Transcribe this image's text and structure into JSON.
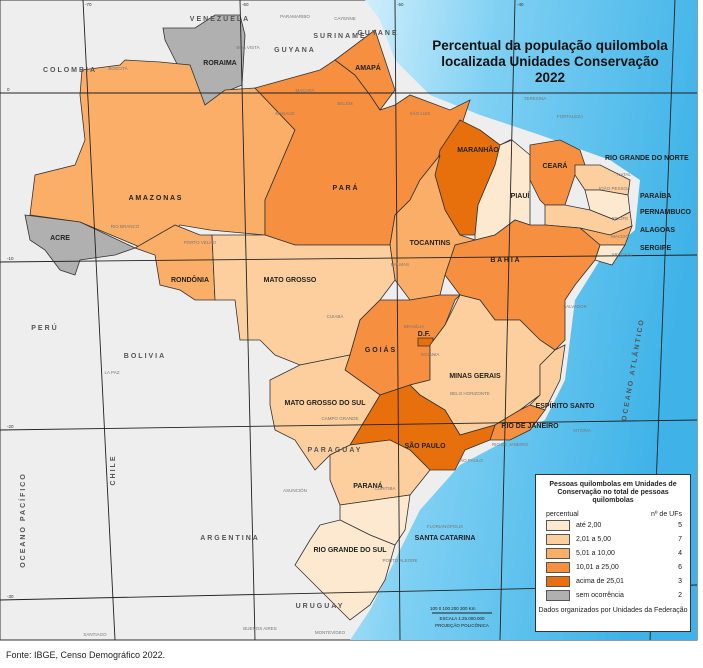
{
  "title": [
    "Percentual da população quilombola",
    "localizada Unidades Conservação",
    "2022"
  ],
  "colors": {
    "land_other": "#eeeeee",
    "ocean": "#5ec2f0",
    "ocean_light": "#c9ecfb",
    "c1": "#fde9d0",
    "c2": "#fdcf9e",
    "c3": "#fbae68",
    "c4": "#f68f3f",
    "c5": "#e8700c",
    "c0": "#b0b0b0"
  },
  "states": [
    {
      "name": "RORAIMA",
      "cls": "c0"
    },
    {
      "name": "A M A Z O N A S",
      "cls": "c3"
    },
    {
      "name": "ACRE",
      "cls": "c0"
    },
    {
      "name": "RONDÔNIA",
      "cls": "c3"
    },
    {
      "name": "P A R Á",
      "cls": "c4"
    },
    {
      "name": "AMAPÁ",
      "cls": "c4"
    },
    {
      "name": "MARANHÃO",
      "cls": "c5"
    },
    {
      "name": "PIAUÍ",
      "cls": "c1"
    },
    {
      "name": "CEARÁ",
      "cls": "c4"
    },
    {
      "name": "RIO GRANDE DO NORTE",
      "cls": "c2"
    },
    {
      "name": "PARAÍBA",
      "cls": "c1"
    },
    {
      "name": "PERNAMBUCO",
      "cls": "c2"
    },
    {
      "name": "ALAGOAS",
      "cls": "c3"
    },
    {
      "name": "SERGIPE",
      "cls": "c1"
    },
    {
      "name": "B A H I A",
      "cls": "c4"
    },
    {
      "name": "TOCANTINS",
      "cls": "c3"
    },
    {
      "name": "MATO  GROSSO",
      "cls": "c2"
    },
    {
      "name": "G O I Á S",
      "cls": "c4"
    },
    {
      "name": "D.F.",
      "cls": "c5"
    },
    {
      "name": "MINAS GERAIS",
      "cls": "c2"
    },
    {
      "name": "ESPÍRITO SANTO",
      "cls": "c2"
    },
    {
      "name": "RIO DE JANEIRO",
      "cls": "c4"
    },
    {
      "name": "SÃO PAULO",
      "cls": "c5"
    },
    {
      "name": "MATO GROSSO DO SUL",
      "cls": "c2"
    },
    {
      "name": "PARANÁ",
      "cls": "c2"
    },
    {
      "name": "SANTA CATARINA",
      "cls": "c1"
    },
    {
      "name": "RIO GRANDE DO SUL",
      "cls": "c1"
    }
  ],
  "countries": [
    "VENEZUELA",
    "COLOMBIA",
    "GUYANA",
    "SURINAME",
    "GUYANE",
    "PERÚ",
    "BOLIVIA",
    "PARAGUAY",
    "ARGENTINA",
    "CHILE",
    "URUGUAY",
    "OCEANO PACÍFICO",
    "OCEANO ATLÂNTICO"
  ],
  "cities": [
    "BOGOTÁ",
    "BOA VISTA",
    "MANAUS",
    "MACAPÁ",
    "BELÉM",
    "SÃO LUÍS",
    "TERESINA",
    "FORTALEZA",
    "NATAL",
    "JOÃO PESSOA",
    "RECIFE",
    "MACEIÓ",
    "ARACAJU",
    "SALVADOR",
    "PALMAS",
    "PORTO VELHO",
    "RIO BRANCO",
    "CUIABÁ",
    "BRASÍLIA",
    "GOIÂNIA",
    "BELO HORIZONTE",
    "VITÓRIA",
    "RIO DE JANEIRO",
    "SÃO PAULO",
    "CAMPO GRANDE",
    "CURITIBA",
    "FLORIANÓPOLIS",
    "PORTO ALEGRE",
    "ASUNCIÓN",
    "LA PAZ",
    "PARAMARIBO",
    "CAYENNE",
    "BUENOS AIRES",
    "MONTEVIDEO",
    "SANTIAGO"
  ],
  "grid": [
    "-70",
    "-60",
    "-50",
    "-40",
    "0",
    "-10",
    "-20",
    "-30"
  ],
  "scale": {
    "ticks": "100  0   100  200  300 Km",
    "text": "ESCALA 1:25.000.000",
    "proj": "PROJEÇÃO POLICÔNICA"
  },
  "legend": {
    "title": "Pessoas quilombolas em Unidades de Conservação no total de pessoas quilombolas",
    "col1": "percentual",
    "col2": "nº de UFs",
    "items": [
      {
        "label": "até 2,00",
        "count": "5",
        "color": "#fde9d0"
      },
      {
        "label": "2,01 a 5,00",
        "count": "7",
        "color": "#fdcf9e"
      },
      {
        "label": "5,01 a 10,00",
        "count": "4",
        "color": "#fbae68"
      },
      {
        "label": "10,01 a 25,00",
        "count": "6",
        "color": "#f68f3f"
      },
      {
        "label": "acima de 25,01",
        "count": "3",
        "color": "#e8700c"
      },
      {
        "label": "sem ocorrência",
        "count": "2",
        "color": "#b0b0b0"
      }
    ],
    "note": "Dados organizados por Unidades da Federação"
  },
  "footer": "Fonte: IBGE, Censo Demográfico 2022."
}
